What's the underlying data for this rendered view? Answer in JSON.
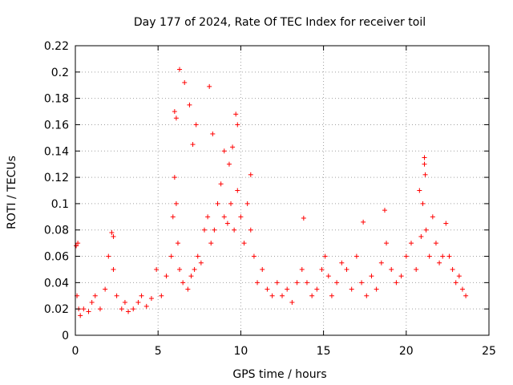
{
  "chart_data": {
    "type": "scatter",
    "title": "Day 177 of 2024, Rate Of TEC Index for receiver toil",
    "xlabel": "GPS time / hours",
    "ylabel": "ROTI / TECUs",
    "xlim": [
      0,
      25
    ],
    "ylim": [
      0,
      0.22
    ],
    "x_ticks": [
      0,
      5,
      10,
      15,
      20,
      25
    ],
    "x_tick_labels": [
      "0",
      "5",
      "10",
      "15",
      "20",
      "25"
    ],
    "y_ticks": [
      0,
      0.02,
      0.04,
      0.06,
      0.08,
      0.1,
      0.12,
      0.14,
      0.16,
      0.18,
      0.2,
      0.22
    ],
    "y_tick_labels": [
      "0",
      "0.02",
      "0.04",
      "0.06",
      "0.08",
      "0.1",
      "0.12",
      "0.14",
      "0.16",
      "0.18",
      "0.2",
      "0.22"
    ],
    "grid": true,
    "marker": "+",
    "marker_color": "#ff0000",
    "series": [
      {
        "name": "toil",
        "x": [
          0.1,
          0.15,
          0.2,
          0.3,
          0.5,
          0.8,
          1.0,
          1.2,
          1.5,
          1.8,
          2.0,
          2.2,
          2.3,
          2.5,
          2.8,
          3.0,
          3.2,
          3.5,
          3.8,
          4.0,
          4.3,
          4.6,
          4.9,
          5.2,
          5.5,
          5.8,
          5.9,
          6.0,
          6.1,
          6.2,
          6.3,
          6.5,
          6.8,
          7.0,
          7.2,
          7.4,
          7.6,
          7.8,
          8.0,
          8.2,
          8.4,
          8.6,
          8.8,
          9.0,
          9.2,
          9.4,
          9.6,
          9.8,
          10.0,
          10.2,
          10.4,
          10.6,
          10.8,
          11.0,
          11.3,
          11.6,
          11.9,
          12.2,
          12.5,
          12.8,
          13.1,
          13.4,
          13.7,
          14.0,
          14.3,
          14.6,
          14.9,
          15.1,
          15.3,
          15.5,
          15.8,
          16.1,
          16.4,
          16.7,
          17.0,
          17.3,
          17.6,
          17.9,
          18.2,
          18.5,
          18.8,
          19.1,
          19.4,
          19.7,
          20.0,
          20.3,
          20.6,
          20.9,
          21.0,
          21.1,
          21.2,
          21.4,
          21.6,
          21.8,
          22.0,
          22.2,
          22.4,
          22.6,
          22.8,
          23.0,
          23.2,
          23.4,
          23.6,
          6.0,
          6.1,
          6.3,
          6.6,
          6.9,
          7.1,
          7.3,
          8.1,
          8.3,
          9.5,
          9.7,
          9.8,
          10.6,
          13.8,
          17.4,
          18.7,
          21.1,
          21.15,
          20.8,
          0.05,
          2.3,
          9.0,
          9.3
        ],
        "y": [
          0.03,
          0.07,
          0.02,
          0.015,
          0.02,
          0.018,
          0.025,
          0.03,
          0.02,
          0.035,
          0.06,
          0.078,
          0.05,
          0.03,
          0.02,
          0.025,
          0.018,
          0.02,
          0.025,
          0.03,
          0.022,
          0.028,
          0.05,
          0.03,
          0.045,
          0.06,
          0.09,
          0.12,
          0.1,
          0.07,
          0.05,
          0.04,
          0.035,
          0.045,
          0.05,
          0.06,
          0.055,
          0.08,
          0.09,
          0.07,
          0.08,
          0.1,
          0.115,
          0.09,
          0.085,
          0.1,
          0.08,
          0.11,
          0.09,
          0.07,
          0.1,
          0.08,
          0.06,
          0.04,
          0.05,
          0.035,
          0.03,
          0.04,
          0.03,
          0.035,
          0.025,
          0.04,
          0.05,
          0.04,
          0.03,
          0.035,
          0.05,
          0.06,
          0.045,
          0.03,
          0.04,
          0.055,
          0.05,
          0.035,
          0.06,
          0.04,
          0.03,
          0.045,
          0.035,
          0.055,
          0.07,
          0.05,
          0.04,
          0.045,
          0.06,
          0.07,
          0.05,
          0.075,
          0.1,
          0.13,
          0.08,
          0.06,
          0.09,
          0.07,
          0.055,
          0.06,
          0.085,
          0.06,
          0.05,
          0.04,
          0.045,
          0.035,
          0.03,
          0.17,
          0.165,
          0.202,
          0.192,
          0.175,
          0.145,
          0.16,
          0.189,
          0.153,
          0.143,
          0.168,
          0.16,
          0.122,
          0.089,
          0.086,
          0.095,
          0.135,
          0.122,
          0.11,
          0.068,
          0.075,
          0.14,
          0.13
        ]
      }
    ]
  }
}
